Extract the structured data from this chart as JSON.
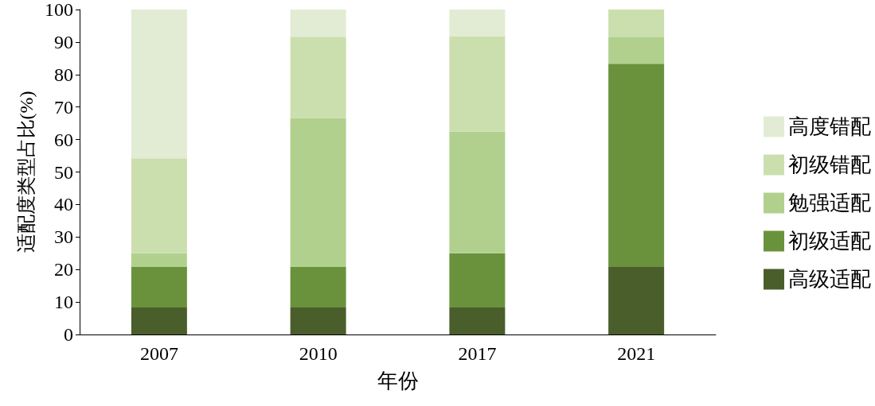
{
  "chart_data": {
    "type": "bar",
    "stacked": true,
    "xlabel": "年份",
    "ylabel": "适配度类型占比(%)",
    "categories": [
      "2007",
      "2010",
      "2017",
      "2021"
    ],
    "series": [
      {
        "name": "高级适配",
        "color": "#4a5e2c",
        "values": [
          8.3,
          8.3,
          8.3,
          20.8
        ]
      },
      {
        "name": "初级适配",
        "color": "#6a923d",
        "values": [
          12.5,
          12.5,
          16.7,
          62.5
        ]
      },
      {
        "name": "勉强适配",
        "color": "#b1d08e",
        "values": [
          4.2,
          45.8,
          37.5,
          8.3
        ]
      },
      {
        "name": "初级错配",
        "color": "#cbdfae",
        "values": [
          29.2,
          25.0,
          29.2,
          8.4
        ]
      },
      {
        "name": "高度错配",
        "color": "#e2ecd4",
        "values": [
          45.8,
          8.4,
          8.3,
          0
        ]
      }
    ],
    "ylim": [
      0,
      100
    ],
    "yticks": [
      0,
      10,
      20,
      30,
      40,
      50,
      60,
      70,
      80,
      90,
      100
    ],
    "grid": false,
    "legend": "right"
  }
}
